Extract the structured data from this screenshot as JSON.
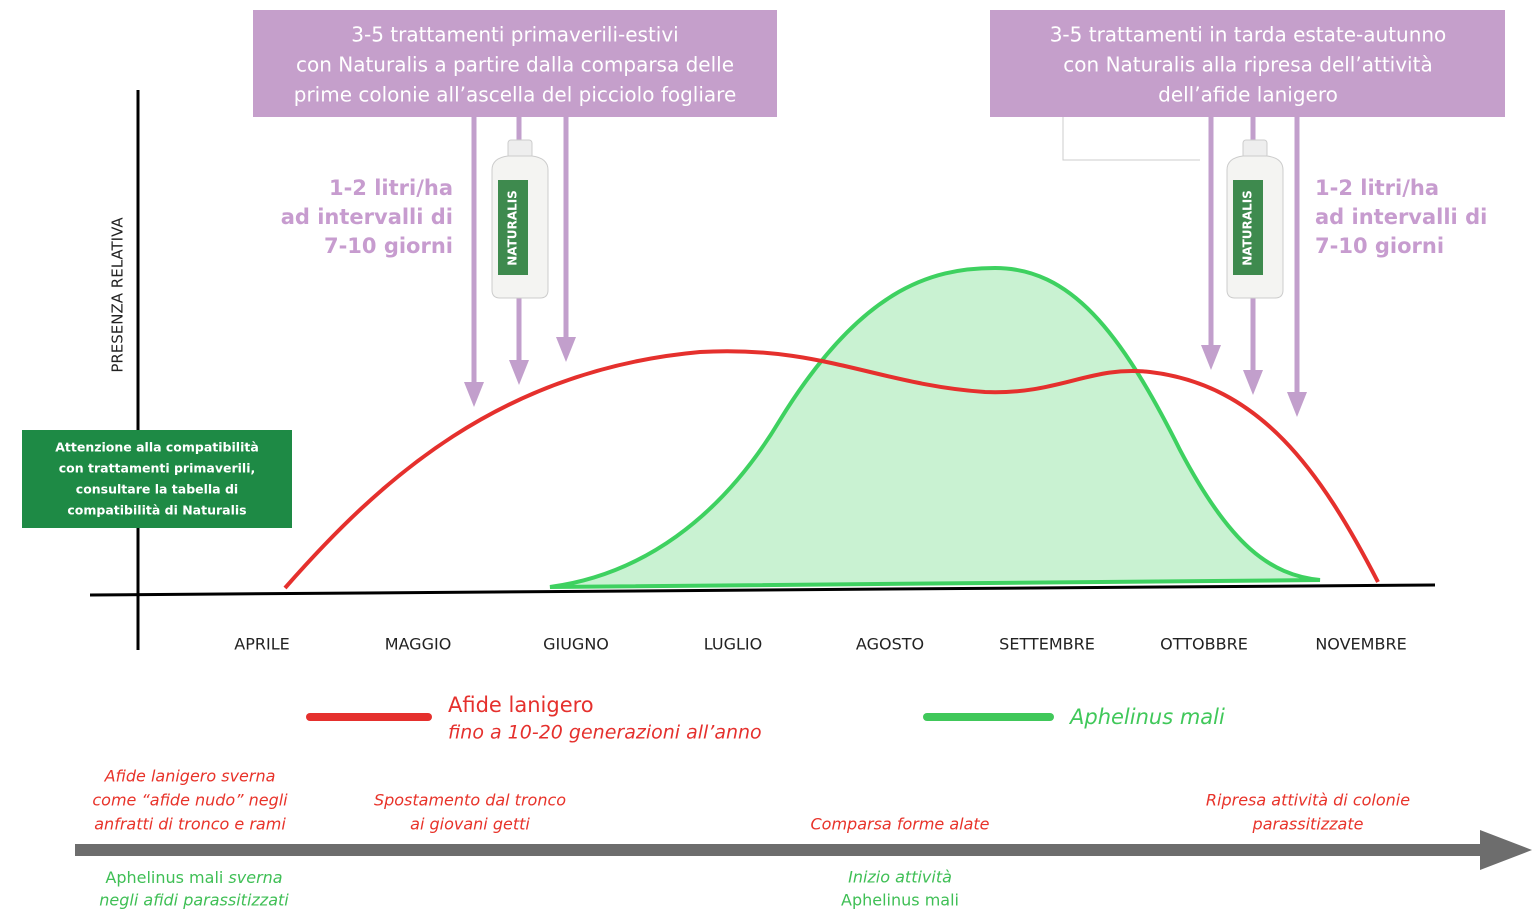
{
  "box_left": {
    "lines": [
      "3-5 trattamenti primaverili-estivi",
      "con Naturalis a partire dalla comparsa delle",
      "prime colonie all’ascella del picciolo fogliare"
    ]
  },
  "box_right": {
    "lines": [
      "3-5 trattamenti in tarda estate-autunno",
      "con Naturalis alla ripresa dell’attività",
      "dell’afide lanigero"
    ]
  },
  "dose_left": [
    "1-2 litri/ha",
    "ad intervalli di",
    "7-10 giorni"
  ],
  "dose_right": [
    "1-2 litri/ha",
    "ad intervalli di",
    "7-10 giorni"
  ],
  "bottle_label": "NATURALIS",
  "y_axis_label": "PRESENZA RELATIVA",
  "warning_box": [
    "Attenzione alla compatibilità",
    "con trattamenti primaverili,",
    "consultare la tabella di",
    "compatibilità di Naturalis"
  ],
  "months": [
    "APRILE",
    "MAGGIO",
    "GIUGNO",
    "LUGLIO",
    "AGOSTO",
    "SETTEMBRE",
    "OTTOBBRE",
    "NOVEMBRE"
  ],
  "legend": {
    "red_name": "Afide lanigero",
    "red_note": "fino a 10-20 generazioni all’anno",
    "green_name": "Aphelinus mali"
  },
  "timeline_above": [
    [
      "Afide lanigero sverna",
      "come  “afide nudo” negli",
      "anfratti di tronco e rami"
    ],
    [
      "Spostamento dal tronco",
      "ai giovani getti"
    ],
    [
      "Comparsa forme alate"
    ],
    [
      "Ripresa attività di colonie",
      "parassitizzate"
    ]
  ],
  "timeline_below": {
    "first": {
      "name": "Aphelinus mali",
      "rest": " sverna",
      "line2": "negli afidi parassitizzati"
    },
    "second": [
      "Inizio attività",
      "Aphelinus mali"
    ]
  }
}
